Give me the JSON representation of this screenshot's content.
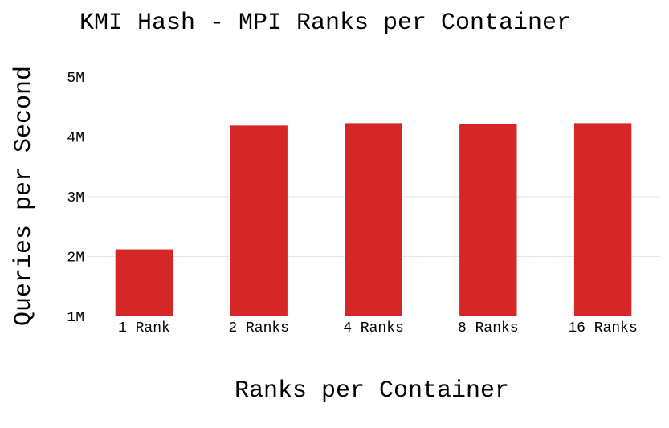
{
  "chart_data": {
    "type": "bar",
    "title": "KMI Hash - MPI Ranks per Container",
    "xlabel": "Ranks per Container",
    "ylabel": "Queries per Second",
    "categories": [
      "1 Rank",
      "2 Ranks",
      "4 Ranks",
      "8 Ranks",
      "16 Ranks"
    ],
    "values": [
      2120000,
      4190000,
      4230000,
      4210000,
      4230000
    ],
    "ylim": [
      1000000,
      5000000
    ],
    "yticks": [
      1000000,
      2000000,
      3000000,
      4000000,
      5000000
    ],
    "ytick_labels": [
      "1M",
      "2M",
      "3M",
      "4M",
      "5M"
    ],
    "bar_color": "#d62728",
    "grid": true,
    "legend": "none"
  }
}
